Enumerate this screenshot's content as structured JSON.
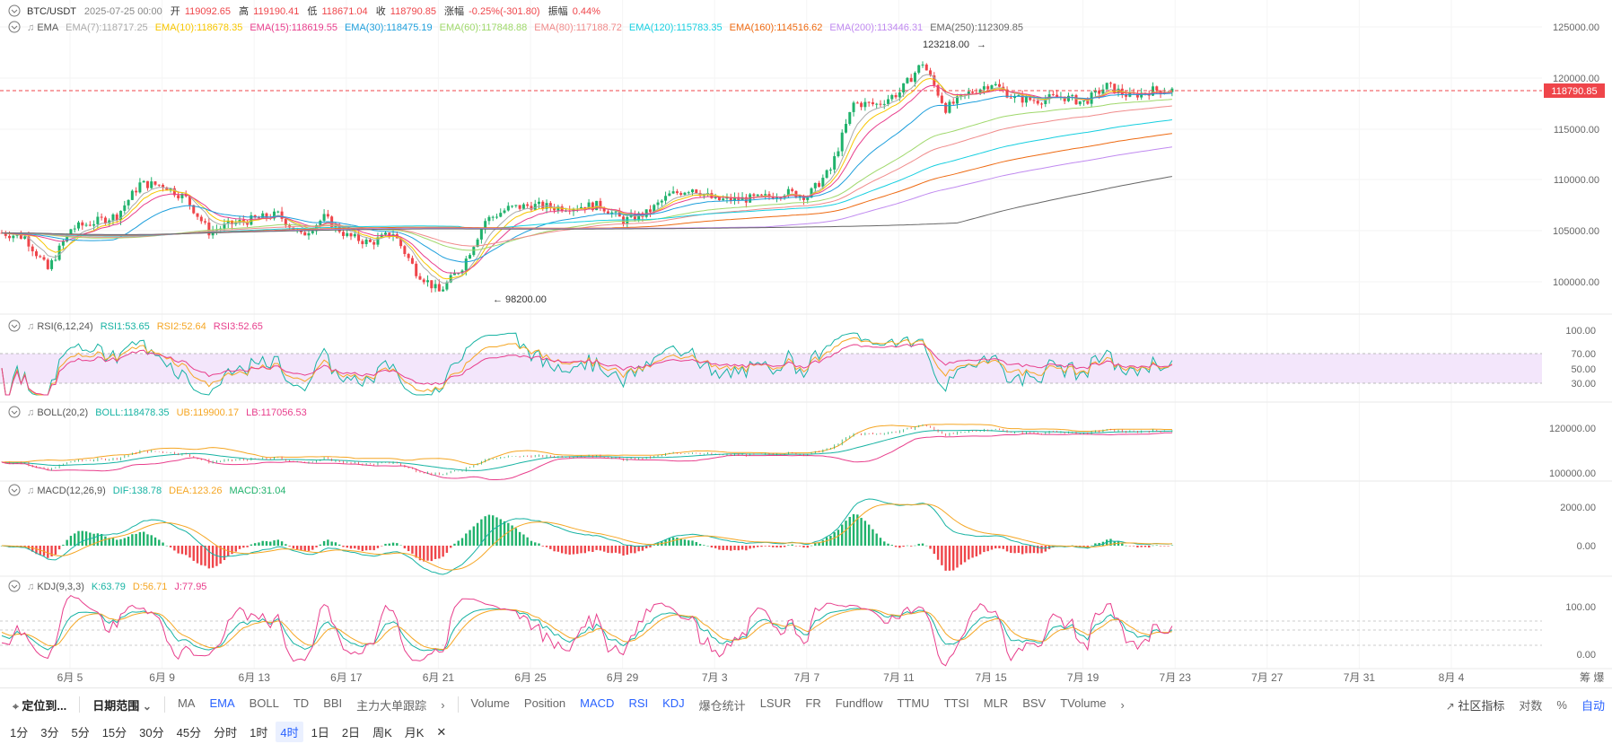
{
  "colors": {
    "up": "#20b26c",
    "down": "#ef454a",
    "grid": "#f0f0f0",
    "axis_text": "#666666",
    "price_tag": "#ef454a",
    "rsi_band": "#f3e6fb",
    "active": "#2962ff"
  },
  "header": {
    "symbol": "BTC/USDT",
    "datetime": "2025-07-25 00:00",
    "open_label": "开",
    "open": "119092.65",
    "high_label": "高",
    "high": "119190.41",
    "low_label": "低",
    "low": "118671.04",
    "close_label": "收",
    "close": "118790.85",
    "change_label": "涨幅",
    "change": "-0.25%(-301.80)",
    "amp_label": "振幅",
    "amp": "0.44%"
  },
  "ema_legend": {
    "title": "EMA",
    "items": [
      {
        "text": "EMA(7):118717.25",
        "color": "#aaaaaa"
      },
      {
        "text": "EMA(10):118678.35",
        "color": "#f7c600"
      },
      {
        "text": "EMA(15):118619.55",
        "color": "#e83e8c"
      },
      {
        "text": "EMA(30):118475.19",
        "color": "#1e9fdc"
      },
      {
        "text": "EMA(60):117848.88",
        "color": "#9fd86b"
      },
      {
        "text": "EMA(80):117188.72",
        "color": "#f08b8b"
      },
      {
        "text": "EMA(120):115783.35",
        "color": "#16cfe0"
      },
      {
        "text": "EMA(160):114516.62",
        "color": "#ee6a12"
      },
      {
        "text": "EMA(200):113446.31",
        "color": "#c08af0"
      },
      {
        "text": "EMA(250):112309.85",
        "color": "#666666"
      }
    ]
  },
  "rsi_legend": {
    "title": "RSI(6,12,24)",
    "items": [
      {
        "text": "RSI1:53.65",
        "color": "#17b3a3"
      },
      {
        "text": "RSI2:52.64",
        "color": "#f5a623"
      },
      {
        "text": "RSI3:52.65",
        "color": "#e83e8c"
      }
    ]
  },
  "boll_legend": {
    "title": "BOLL(20,2)",
    "items": [
      {
        "text": "BOLL:118478.35",
        "color": "#17b3a3"
      },
      {
        "text": "UB:119900.17",
        "color": "#f5a623"
      },
      {
        "text": "LB:117056.53",
        "color": "#e83e8c"
      }
    ]
  },
  "macd_legend": {
    "title": "MACD(12,26,9)",
    "items": [
      {
        "text": "DIF:138.78",
        "color": "#17b3a3"
      },
      {
        "text": "DEA:123.26",
        "color": "#f5a623"
      },
      {
        "text": "MACD:31.04",
        "color": "#20b26c"
      }
    ]
  },
  "kdj_legend": {
    "title": "KDJ(9,3,3)",
    "items": [
      {
        "text": "K:63.79",
        "color": "#17b3a3"
      },
      {
        "text": "D:56.71",
        "color": "#f5a623"
      },
      {
        "text": "J:77.95",
        "color": "#e83e8c"
      }
    ]
  },
  "price_axis": {
    "ticks": [
      "125000.00",
      "120000.00",
      "115000.00",
      "110000.00",
      "105000.00",
      "100000.00"
    ],
    "current": "118790.85"
  },
  "rsi_axis": {
    "ticks": [
      "100.00",
      "70.00",
      "50.00",
      "30.00"
    ]
  },
  "boll_axis": {
    "ticks": [
      "120000.00",
      "100000.00"
    ]
  },
  "macd_axis": {
    "ticks": [
      "2000.00",
      "0.00"
    ]
  },
  "kdj_axis": {
    "ticks": [
      "100.00",
      "0.00"
    ]
  },
  "time_axis": {
    "ticks": [
      "6月 5",
      "6月 9",
      "6月 13",
      "6月 17",
      "6月 21",
      "6月 25",
      "6月 29",
      "7月 3",
      "7月 7",
      "7月 11",
      "7月 15",
      "7月 19",
      "7月 23",
      "7月 27",
      "7月 31",
      "8月 4"
    ],
    "corner": "筹 爆"
  },
  "annotations": {
    "high": "123218.00",
    "low": "98200.00"
  },
  "chart_data": {
    "type": "candlestick",
    "interval": "4时",
    "x_range": [
      "2025-06-04",
      "2025-07-25"
    ],
    "ylim": [
      98000,
      125500
    ],
    "high": 123218.0,
    "low": 98200.0,
    "last_close": 118790.85,
    "close_path_anchors": [
      [
        "2025-06-04",
        104800
      ],
      [
        "2025-06-05",
        104400
      ],
      [
        "2025-06-06",
        101200
      ],
      [
        "2025-06-07",
        105200
      ],
      [
        "2025-06-09",
        106500
      ],
      [
        "2025-06-10",
        109600
      ],
      [
        "2025-06-11",
        109500
      ],
      [
        "2025-06-12",
        108200
      ],
      [
        "2025-06-13",
        104900
      ],
      [
        "2025-06-14",
        105700
      ],
      [
        "2025-06-16",
        106600
      ],
      [
        "2025-06-17",
        104500
      ],
      [
        "2025-06-18",
        106300
      ],
      [
        "2025-06-19",
        104500
      ],
      [
        "2025-06-20",
        103800
      ],
      [
        "2025-06-21",
        104800
      ],
      [
        "2025-06-22",
        101000
      ],
      [
        "2025-06-23",
        99000
      ],
      [
        "2025-06-24",
        101500
      ],
      [
        "2025-06-25",
        106000
      ],
      [
        "2025-06-26",
        107200
      ],
      [
        "2025-06-27",
        107500
      ],
      [
        "2025-06-28",
        107300
      ],
      [
        "2025-06-30",
        107500
      ],
      [
        "2025-07-01",
        106000
      ],
      [
        "2025-07-02",
        106700
      ],
      [
        "2025-07-03",
        108500
      ],
      [
        "2025-07-04",
        109200
      ],
      [
        "2025-07-05",
        108000
      ],
      [
        "2025-07-07",
        108200
      ],
      [
        "2025-07-08",
        108800
      ],
      [
        "2025-07-09",
        108400
      ],
      [
        "2025-07-10",
        111000
      ],
      [
        "2025-07-11",
        117500
      ],
      [
        "2025-07-12",
        117400
      ],
      [
        "2025-07-13",
        118600
      ],
      [
        "2025-07-14",
        121500
      ],
      [
        "2025-07-15",
        117000
      ],
      [
        "2025-07-16",
        118500
      ],
      [
        "2025-07-17",
        119500
      ],
      [
        "2025-07-18",
        118000
      ],
      [
        "2025-07-19",
        117800
      ],
      [
        "2025-07-20",
        118200
      ],
      [
        "2025-07-21",
        117600
      ],
      [
        "2025-07-22",
        119200
      ],
      [
        "2025-07-23",
        118200
      ],
      [
        "2025-07-24",
        118800
      ],
      [
        "2025-07-25",
        118790
      ]
    ],
    "ema_last": {
      "EMA7": 118717.25,
      "EMA10": 118678.35,
      "EMA15": 118619.55,
      "EMA30": 118475.19,
      "EMA60": 117848.88,
      "EMA80": 117188.72,
      "EMA120": 115783.35,
      "EMA160": 114516.62,
      "EMA200": 113446.31,
      "EMA250": 112309.85
    },
    "rsi_last": {
      "RSI1": 53.65,
      "RSI2": 52.64,
      "RSI3": 52.65
    },
    "boll_last": {
      "BOLL": 118478.35,
      "UB": 119900.17,
      "LB": 117056.53
    },
    "macd_last": {
      "DIF": 138.78,
      "DEA": 123.26,
      "MACD": 31.04
    },
    "kdj_last": {
      "K": 63.79,
      "D": 56.71,
      "J": 77.95
    }
  },
  "toolbar": {
    "locate": "定位到...",
    "date_range": "日期范围",
    "main_indicators": [
      "MA",
      "EMA",
      "BOLL",
      "TD",
      "BBI",
      "主力大单跟踪"
    ],
    "sub_indicators": [
      "Volume",
      "Position",
      "MACD",
      "RSI",
      "KDJ",
      "爆仓统计",
      "LSUR",
      "FR",
      "Fundflow",
      "TTMU",
      "TTSI",
      "MLR",
      "BSV",
      "TVolume"
    ],
    "community": "社区指标",
    "log": "对数",
    "pct": "%",
    "auto": "自动"
  },
  "intervals": {
    "items": [
      "1分",
      "3分",
      "5分",
      "15分",
      "30分",
      "45分",
      "分时",
      "1时",
      "4时",
      "1日",
      "2日",
      "周K",
      "月K"
    ],
    "active": "4时"
  }
}
